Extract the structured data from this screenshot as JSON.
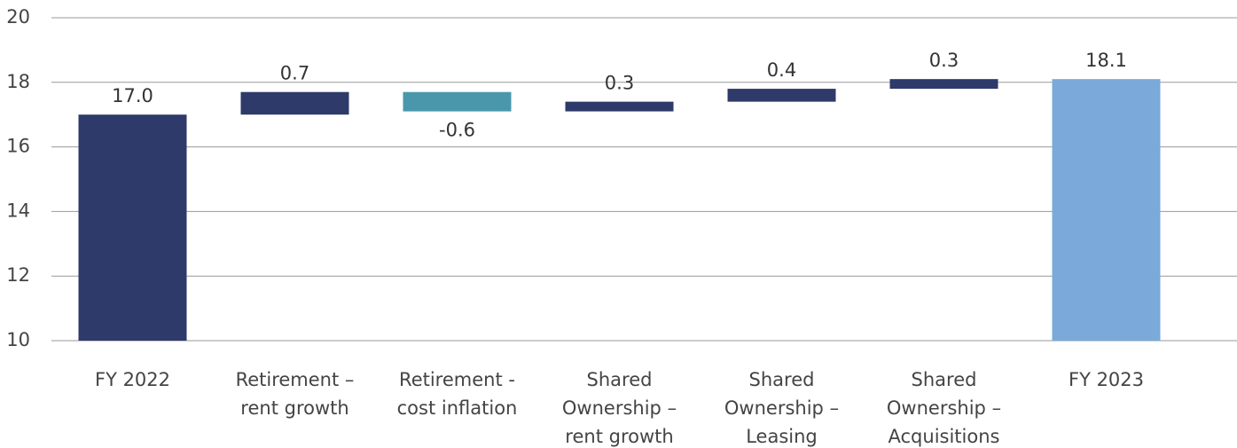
{
  "chart_data": {
    "type": "waterfall",
    "categories": [
      "FY 2022",
      "Retirement –\nrent growth",
      "Retirement -\ncost inflation",
      "Shared\nOwnership –\nrent growth",
      "Shared\nOwnership –\nLeasing",
      "Shared\nOwnership –\nAcquisitions",
      "FY 2023"
    ],
    "values": [
      17,
      0.7,
      -0.6,
      0.3,
      0.4,
      0.3,
      18.1
    ],
    "value_labels": [
      "17.0",
      "0.7",
      "-0.6",
      "0.3",
      "0.4",
      "0.3",
      "18.1"
    ],
    "measure": [
      "absolute",
      "relative",
      "relative",
      "relative",
      "relative",
      "relative",
      "total"
    ],
    "colors": [
      "#2e3a69",
      "#2e3a69",
      "#4a97ab",
      "#2e3a69",
      "#2e3a69",
      "#2e3a69",
      "#7aa9da"
    ],
    "ylim": [
      10,
      20
    ],
    "yticks": [
      10,
      12,
      14,
      16,
      18,
      20
    ],
    "grid": true
  }
}
